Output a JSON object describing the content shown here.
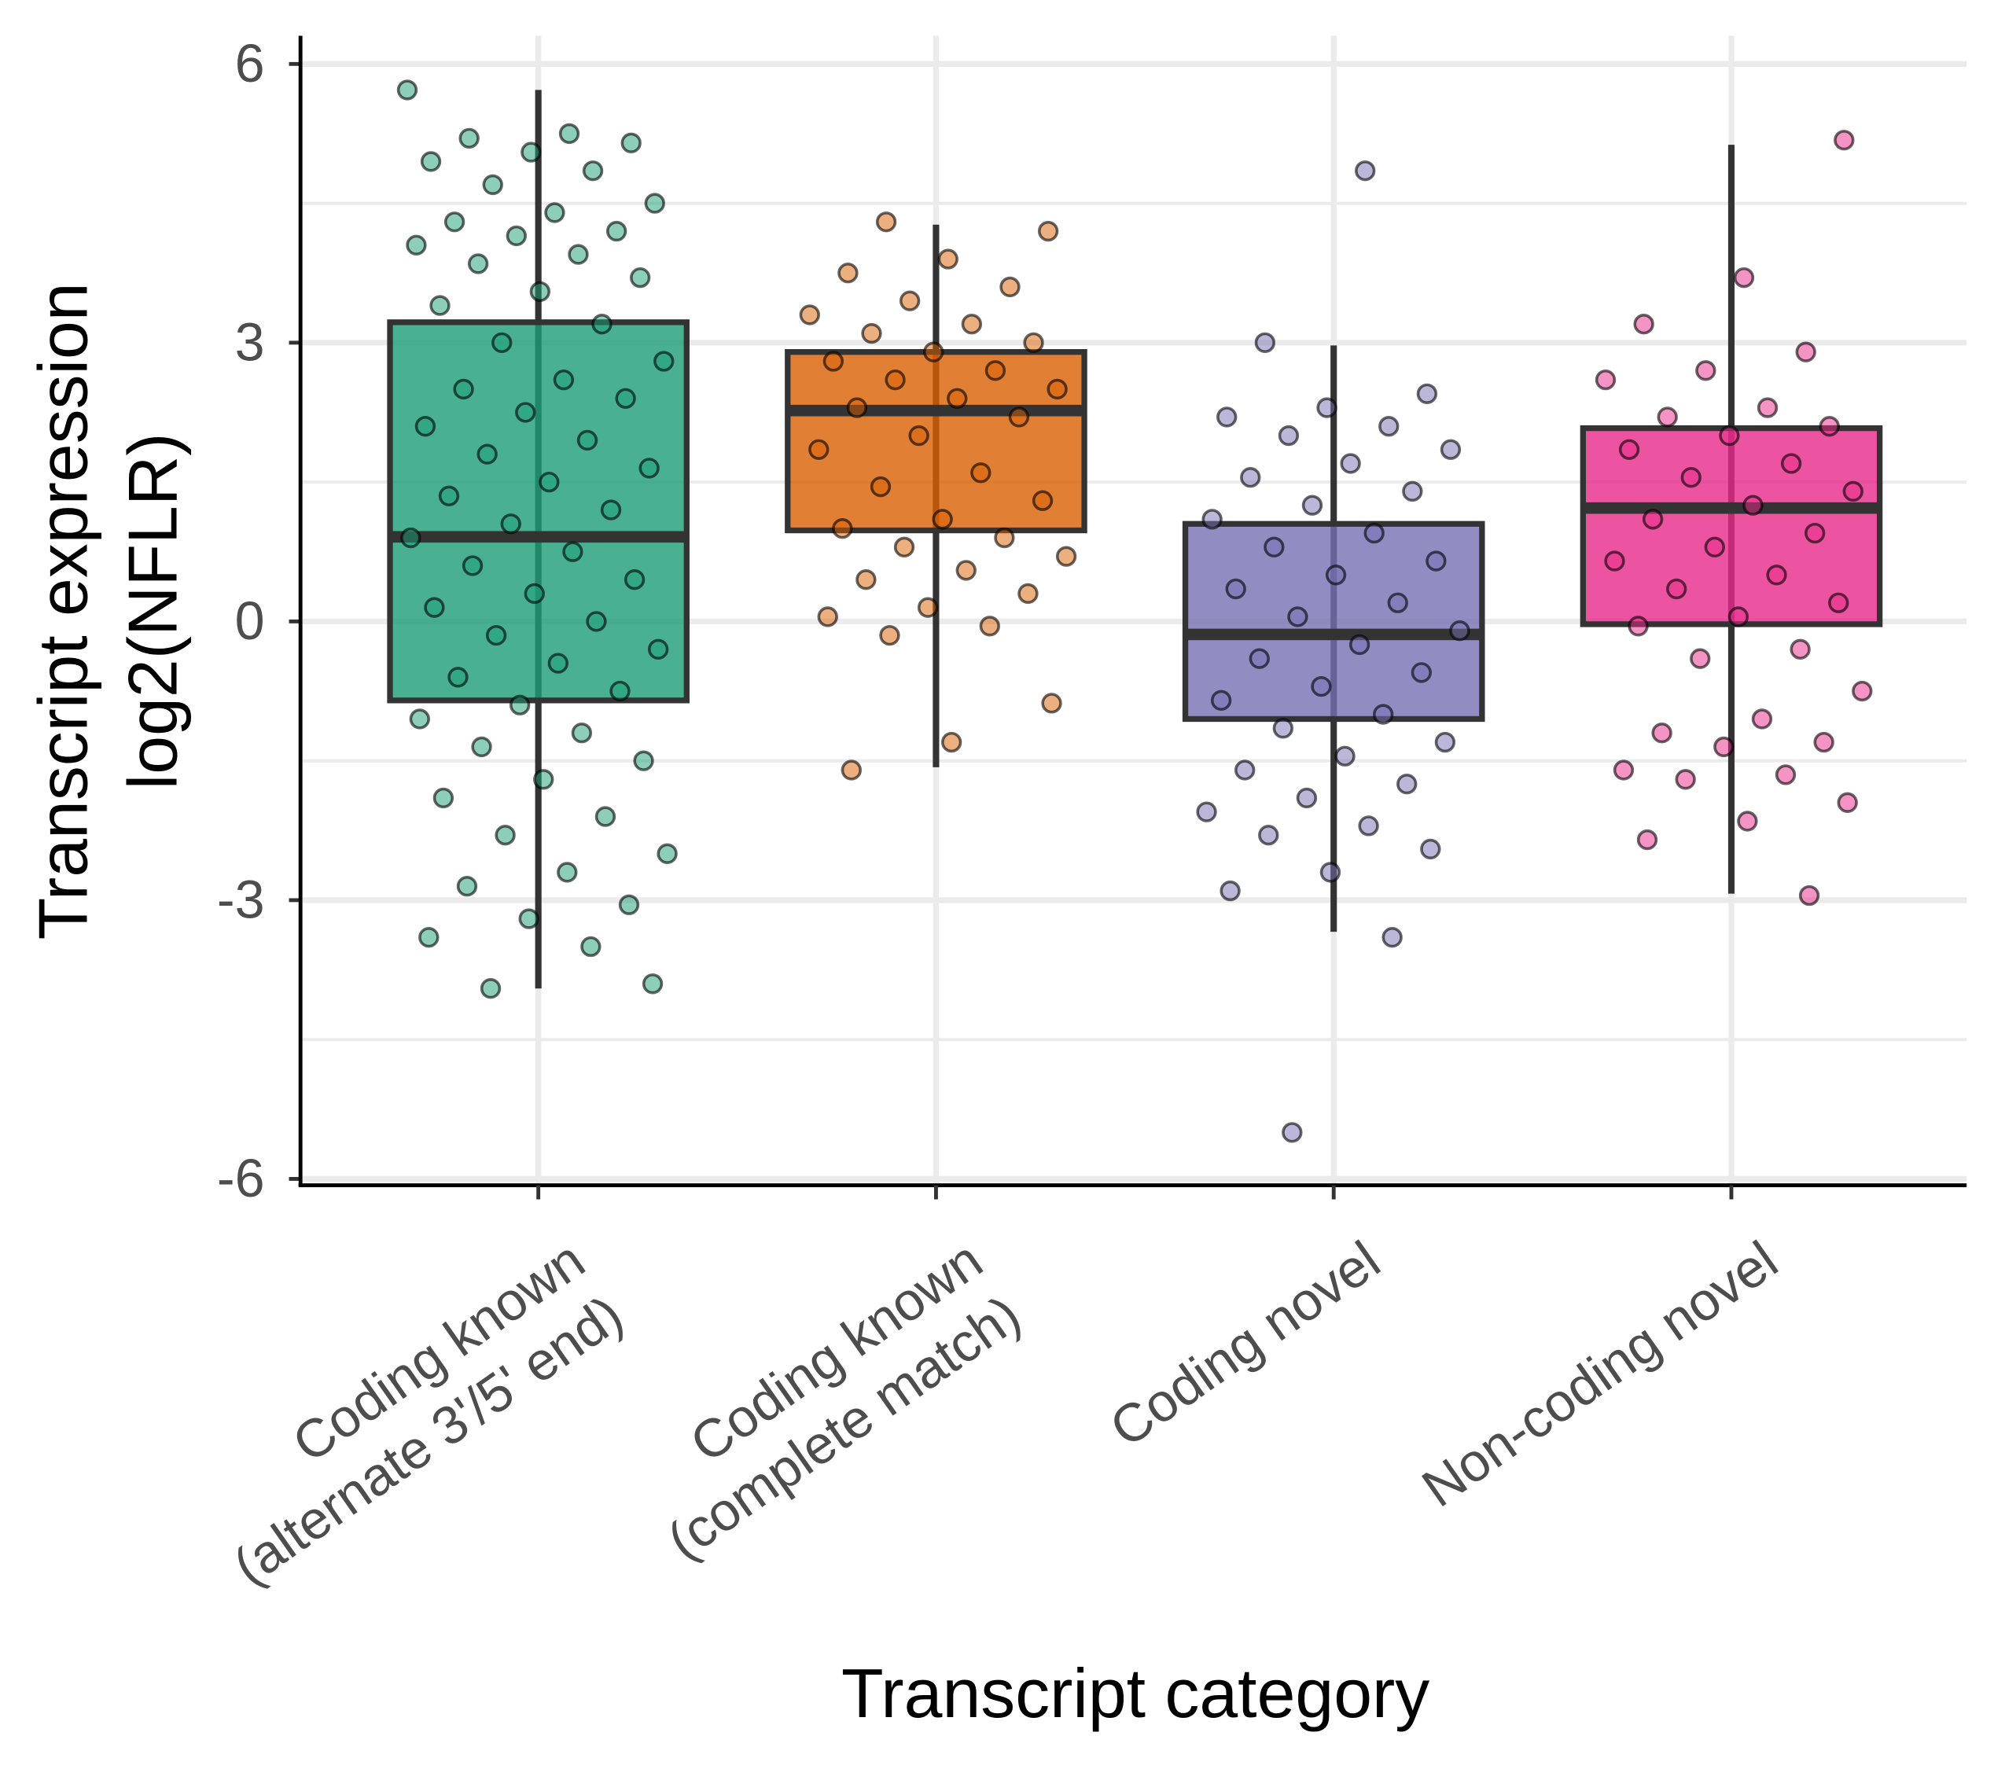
{
  "chart_data": {
    "type": "box",
    "xlabel": "Transcript category",
    "ylabel": [
      "Transcript expression",
      "log2(NFLR)"
    ],
    "categories": [
      "Coding known\n(alternate 3'/5' end)",
      "Coding known\n(complete match)",
      "Coding novel",
      "Non-coding novel"
    ],
    "colors": [
      "#1b9e77",
      "#d95f02",
      "#7570b3",
      "#e7298a"
    ],
    "stats": [
      {
        "whisker_low": -3.95,
        "q1": -0.85,
        "median": 0.91,
        "q3": 3.22,
        "whisker_high": 5.72
      },
      {
        "whisker_low": -1.57,
        "q1": 0.98,
        "median": 2.27,
        "q3": 2.9,
        "whisker_high": 4.27
      },
      {
        "whisker_low": -3.34,
        "q1": -1.05,
        "median": -0.14,
        "q3": 1.05,
        "whisker_high": 2.97
      },
      {
        "whisker_low": -2.93,
        "q1": -0.03,
        "median": 1.22,
        "q3": 2.08,
        "whisker_high": 5.13
      }
    ],
    "points": [
      [
        5.72,
        5.25,
        5.2,
        5.15,
        5.05,
        4.95,
        4.85,
        4.7,
        4.5,
        4.4,
        4.3,
        4.2,
        4.15,
        4.05,
        3.95,
        3.85,
        3.7,
        3.55,
        3.4,
        3.2,
        3.0,
        2.8,
        2.6,
        2.5,
        2.4,
        2.25,
        2.1,
        1.95,
        1.8,
        1.65,
        1.5,
        1.35,
        1.2,
        1.05,
        0.9,
        0.75,
        0.6,
        0.45,
        0.3,
        0.15,
        0.0,
        -0.15,
        -0.3,
        -0.45,
        -0.6,
        -0.75,
        -0.9,
        -1.05,
        -1.2,
        -1.35,
        -1.5,
        -1.7,
        -1.9,
        -2.1,
        -2.3,
        -2.5,
        -2.7,
        -2.85,
        -3.05,
        -3.2,
        -3.4,
        -3.5,
        -3.95,
        -3.9
      ],
      [
        4.3,
        4.2,
        3.9,
        3.75,
        3.6,
        3.45,
        3.3,
        3.2,
        3.1,
        3.0,
        2.9,
        2.8,
        2.7,
        2.6,
        2.5,
        2.4,
        2.3,
        2.2,
        2.0,
        1.85,
        1.6,
        1.45,
        1.3,
        1.1,
        1.0,
        0.9,
        0.8,
        0.7,
        0.55,
        0.45,
        0.3,
        0.15,
        0.05,
        -0.05,
        -0.15,
        -0.88,
        -1.3,
        -1.6
      ],
      [
        4.85,
        3.0,
        2.45,
        2.3,
        2.2,
        2.1,
        2.0,
        1.85,
        1.7,
        1.55,
        1.4,
        1.25,
        1.1,
        0.95,
        0.8,
        0.65,
        0.5,
        0.35,
        0.2,
        0.05,
        -0.1,
        -0.25,
        -0.4,
        -0.55,
        -0.7,
        -0.85,
        -1.0,
        -1.15,
        -1.3,
        -1.45,
        -1.6,
        -1.75,
        -1.9,
        -2.05,
        -2.2,
        -2.3,
        -2.45,
        -2.7,
        -2.9,
        -3.4,
        -5.5
      ],
      [
        5.18,
        3.7,
        3.2,
        2.9,
        2.7,
        2.6,
        2.3,
        2.2,
        2.1,
        2.0,
        1.85,
        1.7,
        1.55,
        1.4,
        1.25,
        1.1,
        0.95,
        0.8,
        0.65,
        0.5,
        0.35,
        0.2,
        0.05,
        -0.05,
        -0.3,
        -0.4,
        -0.75,
        -1.05,
        -1.2,
        -1.3,
        -1.35,
        -1.6,
        -1.65,
        -1.7,
        -1.95,
        -2.15,
        -2.35,
        -2.95
      ]
    ],
    "ylim": [
      -6,
      6
    ],
    "yticks": [
      -6,
      -3,
      0,
      3,
      6
    ],
    "minor_yticks": [
      -4.5,
      -1.5,
      1.5,
      4.5
    ],
    "grid": true
  }
}
